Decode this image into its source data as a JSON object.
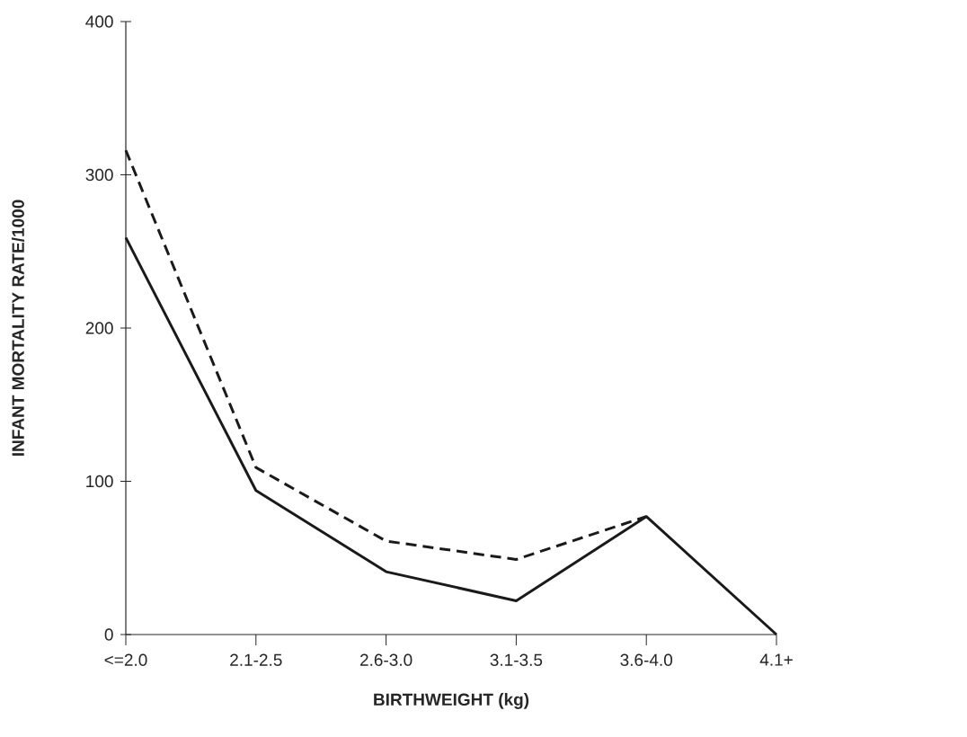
{
  "chart_data": {
    "type": "line",
    "xlabel": "BIRTHWEIGHT (kg)",
    "ylabel": "INFANT MORTALITY RATE/1000",
    "categories": [
      "<=2.0",
      "2.1-2.5",
      "2.6-3.0",
      "3.1-3.5",
      "3.6-4.0",
      "4.1+"
    ],
    "series": [
      {
        "color": "#1a1a1a",
        "line_style": "dashed",
        "values": [
          316,
          109,
          61,
          49,
          77,
          null
        ]
      },
      {
        "color": "#1a1a1a",
        "line_style": "solid",
        "values": [
          259,
          94,
          41,
          22,
          77,
          0
        ]
      }
    ],
    "ylim": [
      0,
      400
    ],
    "yticks": [
      0,
      100,
      200,
      300,
      400
    ],
    "grid": false,
    "marker": "none"
  }
}
